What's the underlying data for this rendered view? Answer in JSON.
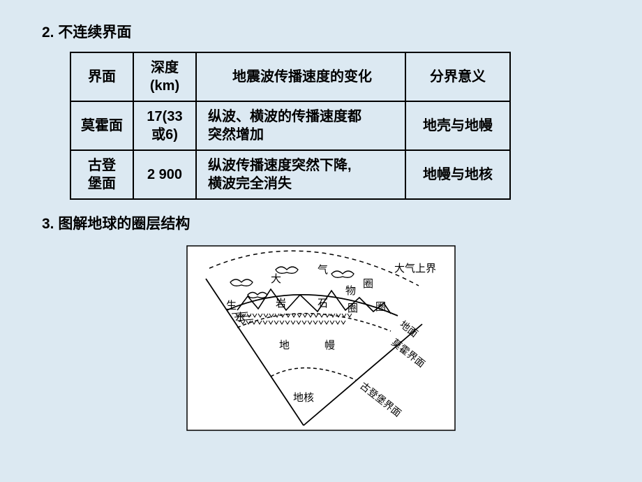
{
  "section2": {
    "heading": "2. 不连续界面",
    "table": {
      "headers": [
        "界面",
        "深度\n(km)",
        "地震波传播速度的变化",
        "分界意义"
      ],
      "rows": [
        [
          "莫霍面",
          "17(33\n或6)",
          "纵波、横波的传播速度都\n突然增加",
          "地壳与地幔"
        ],
        [
          "古登\n堡面",
          "2 900",
          "纵波传播速度突然下降,\n横波完全消失",
          "地幔与地核"
        ]
      ]
    }
  },
  "section3": {
    "heading": "3. 图解地球的圈层结构",
    "diagram": {
      "type": "infographic",
      "description": "Earth layered wedge diagram",
      "background_color": "#dce9f2",
      "figure_bg": "#ffffff",
      "stroke_color": "#000000",
      "labels": {
        "atmosphere_top": "大气上界",
        "atmosphere": "大",
        "air": "气",
        "circle1": "圈",
        "biosphere": "生",
        "hydrosphere": "水",
        "rock1": "岩",
        "rock2": "石",
        "things": "物",
        "circle2": "圈",
        "circle3": "圈",
        "mantle1": "地",
        "mantle2": "幔",
        "core": "地核",
        "surface_line": "地面",
        "moho_line": "莫霍界面",
        "gutenberg_line": "古登堡界面"
      }
    }
  }
}
